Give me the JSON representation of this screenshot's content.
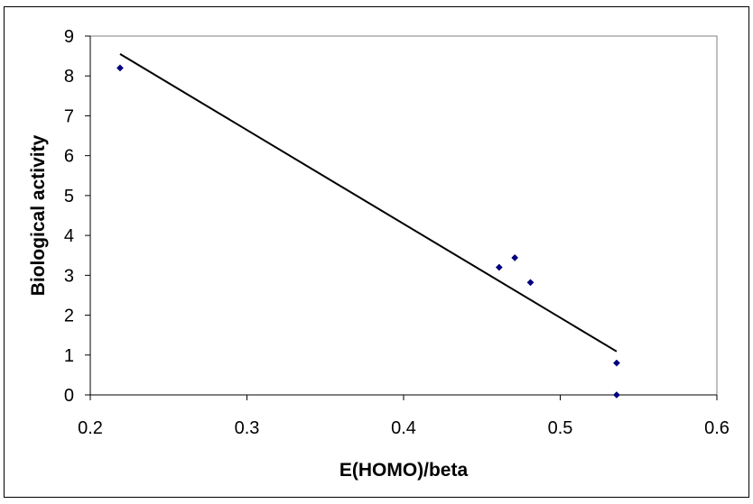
{
  "chart_data": {
    "type": "scatter",
    "title": "",
    "xlabel": "E(HOMO)/beta",
    "ylabel": "Biological activity",
    "xlim": [
      0.2,
      0.6
    ],
    "ylim": [
      0,
      9
    ],
    "x_ticks": [
      0.2,
      0.3,
      0.4,
      0.5,
      0.6
    ],
    "x_tick_labels": [
      "0.2",
      "0.3",
      "0.4",
      "0.5",
      "0.6"
    ],
    "y_ticks": [
      0,
      1,
      2,
      3,
      4,
      5,
      6,
      7,
      8,
      9
    ],
    "y_tick_labels": [
      "0",
      "1",
      "2",
      "3",
      "4",
      "5",
      "6",
      "7",
      "8",
      "9"
    ],
    "grid": false,
    "legend": "none",
    "series": [
      {
        "kind": "points",
        "marker": "diamond",
        "color": "#000080",
        "x": [
          0.219,
          0.461,
          0.471,
          0.481,
          0.536,
          0.536
        ],
        "y": [
          8.2,
          3.2,
          3.44,
          2.82,
          0.8,
          0.0
        ]
      },
      {
        "kind": "trendline",
        "color": "#000000",
        "x": [
          0.219,
          0.536
        ],
        "y": [
          8.55,
          1.09
        ]
      }
    ]
  }
}
